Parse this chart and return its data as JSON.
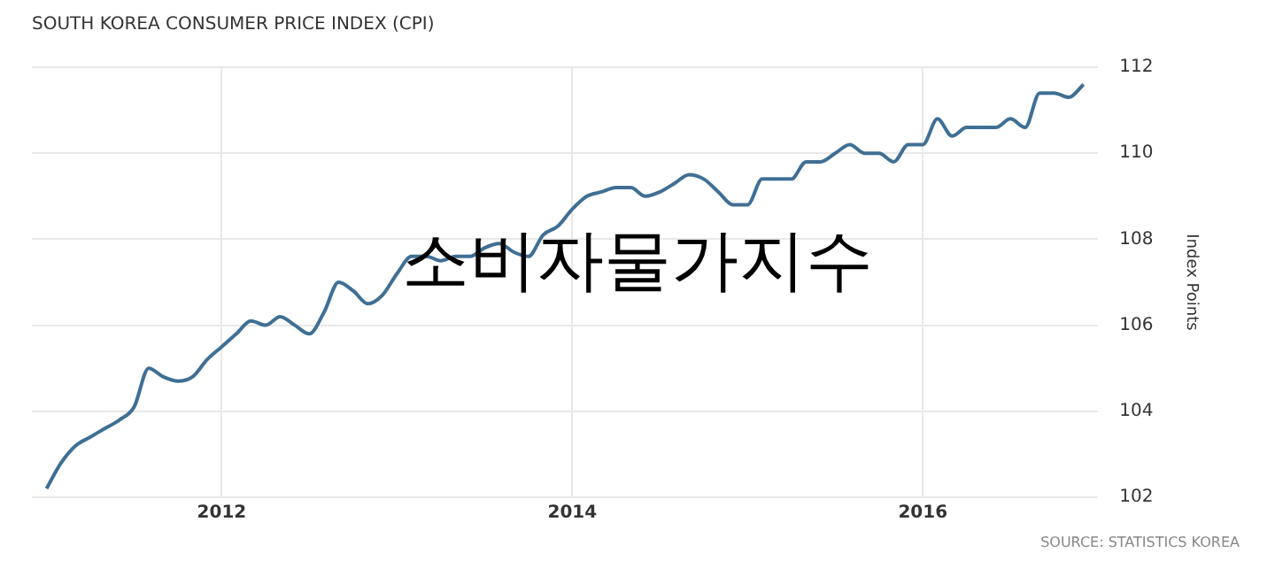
{
  "chart_data": {
    "type": "line",
    "title": "SOUTH KOREA CONSUMER PRICE INDEX (CPI)",
    "ylabel": "Index Points",
    "x": [
      "2011-01",
      "2011-02",
      "2011-03",
      "2011-04",
      "2011-05",
      "2011-06",
      "2011-07",
      "2011-08",
      "2011-09",
      "2011-10",
      "2011-11",
      "2011-12",
      "2012-01",
      "2012-02",
      "2012-03",
      "2012-04",
      "2012-05",
      "2012-06",
      "2012-07",
      "2012-08",
      "2012-09",
      "2012-10",
      "2012-11",
      "2012-12",
      "2013-01",
      "2013-02",
      "2013-03",
      "2013-04",
      "2013-05",
      "2013-06",
      "2013-07",
      "2013-08",
      "2013-09",
      "2013-10",
      "2013-11",
      "2013-12",
      "2014-01",
      "2014-02",
      "2014-03",
      "2014-04",
      "2014-05",
      "2014-06",
      "2014-07",
      "2014-08",
      "2014-09",
      "2014-10",
      "2014-11",
      "2014-12",
      "2015-01",
      "2015-02",
      "2015-03",
      "2015-04",
      "2015-05",
      "2015-06",
      "2015-07",
      "2015-08",
      "2015-09",
      "2015-10",
      "2015-11",
      "2015-12",
      "2016-01",
      "2016-02",
      "2016-03",
      "2016-04",
      "2016-05",
      "2016-06",
      "2016-07",
      "2016-08",
      "2016-09",
      "2016-10",
      "2016-11",
      "2016-12"
    ],
    "series": [
      {
        "color": "#3f6f94",
        "values": [
          102.2,
          102.8,
          103.2,
          103.4,
          103.6,
          103.8,
          104.1,
          105.0,
          104.8,
          104.7,
          104.8,
          105.2,
          105.5,
          105.8,
          106.1,
          106.0,
          106.2,
          106.0,
          105.8,
          106.3,
          107.0,
          106.8,
          106.5,
          106.7,
          107.2,
          107.6,
          107.6,
          107.5,
          107.6,
          107.6,
          107.8,
          107.9,
          107.7,
          107.6,
          108.1,
          108.3,
          108.7,
          109.0,
          109.1,
          109.2,
          109.2,
          109.0,
          109.1,
          109.3,
          109.5,
          109.4,
          109.1,
          108.8,
          108.8,
          109.4,
          109.4,
          109.4,
          109.8,
          109.8,
          110.0,
          110.2,
          110.0,
          110.0,
          109.8,
          110.2,
          110.2,
          110.8,
          110.4,
          110.6,
          110.6,
          110.6,
          110.8,
          110.6,
          111.4,
          111.4,
          111.3,
          111.6
        ]
      }
    ],
    "xlim": [
      "2010-12",
      "2017-01"
    ],
    "xticks": [
      "2012",
      "2014",
      "2016"
    ],
    "ylim": [
      102,
      112
    ],
    "yticks": [
      102,
      104,
      106,
      108,
      110,
      112
    ],
    "grid": true,
    "legend": false,
    "marker": "none",
    "line_style": "solid",
    "annotations": [
      "소비자물가지수",
      "SOURCE: STATISTICS KOREA"
    ]
  }
}
